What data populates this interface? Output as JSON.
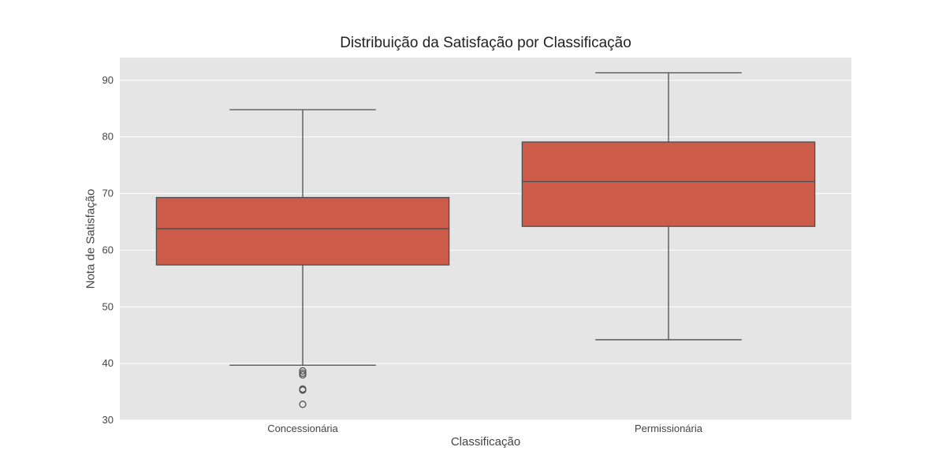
{
  "chart_data": {
    "type": "box",
    "title": "Distribuição da Satisfação por Classificação",
    "xlabel": "Classificação",
    "ylabel": "Nota de Satisfação",
    "ylim": [
      30,
      94
    ],
    "yticks": [
      30,
      40,
      50,
      60,
      70,
      80,
      90
    ],
    "grid": true,
    "colors": {
      "background": "#E5E5E5",
      "box_fill": "#CD5B49",
      "line": "#4D4D4D",
      "grid": "#FFFFFF"
    },
    "categories": [
      "Concessionária",
      "Permissionária"
    ],
    "boxes": [
      {
        "category": "Concessionária",
        "whisker_low": 39.7,
        "q1": 57.4,
        "median": 63.8,
        "q3": 69.3,
        "whisker_high": 84.8,
        "outliers": [
          38.7,
          38.3,
          38.0,
          35.5,
          35.3,
          32.8
        ]
      },
      {
        "category": "Permissionária",
        "whisker_low": 44.2,
        "q1": 64.2,
        "median": 72.1,
        "q3": 79.1,
        "whisker_high": 91.3,
        "outliers": []
      }
    ]
  }
}
